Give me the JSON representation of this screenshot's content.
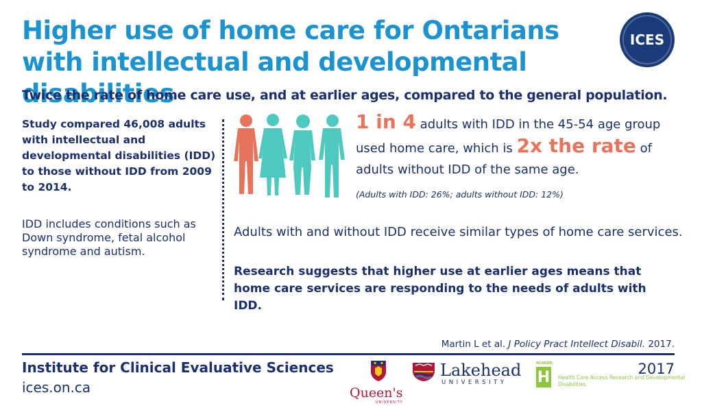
{
  "header": {
    "title": "Higher use of home care for Ontarians with intellectual and developmental disabilities",
    "logo_text": "ICES",
    "subtitle": "Twice the rate of home care use, and at earlier ages, compared to the general population."
  },
  "left": {
    "study": "Study compared 46,008 adults with intellectual and developmental disabilities (IDD) to those without IDD from 2009 to 2014.",
    "idd_note": "IDD includes conditions such as Down syndrome, fetal alcohol syndrome and autism."
  },
  "stat": {
    "highlight_1": "1 in 4",
    "text_1": " adults with IDD in the 45-54 age group used home care, which is ",
    "highlight_2": "2x the rate",
    "text_2": " of adults without IDD of the same age.",
    "note": "(Adults with IDD: 26%; adults without IDD: 12%)"
  },
  "similar_services": "Adults with and without IDD receive similar types of home care services.",
  "research": "Research suggests that higher use at earlier ages means that home care services are responding to the needs of adults with IDD.",
  "citation": {
    "authors": "Martin L et al. ",
    "journal": "J Policy Pract Intellect Disabil.",
    "year": " 2017."
  },
  "footer": {
    "institute": "Institute for Clinical Evaluative Sciences",
    "website": "ices.on.ca",
    "year": "2017",
    "queens_word": "Queen's",
    "queens_sub": "UNIVERSITY",
    "lakehead_word": "Lakehead",
    "lakehead_sub": "UNIVERSITY",
    "hcardd_letter": "H",
    "hcardd_top": "HCARDD",
    "hcardd_text": "Health Care Access Research and Developmental Disabilities"
  },
  "colors": {
    "title_blue": "#1b93d1",
    "navy": "#1a2f6e",
    "orange": "#e9735a",
    "teal": "#4ec9bf",
    "green": "#8cc63f",
    "queens_red": "#b0153a"
  },
  "icons": [
    "person-orange-icon",
    "person-teal-icon",
    "queens-crest-icon",
    "lakehead-logo-icon",
    "hcardd-logo-icon"
  ]
}
